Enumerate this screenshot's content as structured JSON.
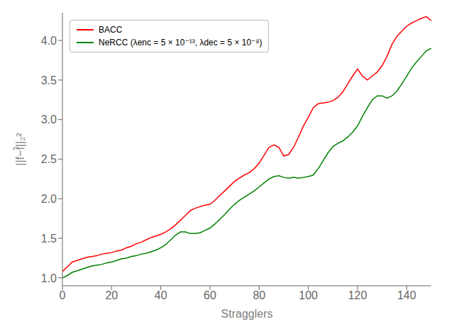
{
  "chart_data": {
    "type": "line",
    "xlabel": "Stragglers",
    "ylabel": "||f−f̂||₂²",
    "xlim": [
      0,
      150
    ],
    "ylim": [
      0.9,
      4.35
    ],
    "xticks": [
      0,
      20,
      40,
      60,
      80,
      100,
      120,
      140
    ],
    "yticks": [
      {
        "value": 1.0,
        "label": "1.0"
      },
      1.5,
      {
        "value": 2.0,
        "label": "2.0"
      },
      2.5,
      {
        "value": 3.0,
        "label": "3.0"
      },
      3.5,
      {
        "value": 4.0,
        "label": "4.0"
      }
    ],
    "grid": false,
    "legend": "upper left",
    "x": [
      0,
      2,
      4,
      6,
      8,
      10,
      12,
      14,
      16,
      18,
      20,
      22,
      24,
      26,
      28,
      30,
      32,
      34,
      36,
      38,
      40,
      42,
      44,
      46,
      48,
      50,
      52,
      54,
      56,
      58,
      60,
      62,
      64,
      66,
      68,
      70,
      72,
      74,
      76,
      78,
      80,
      82,
      84,
      86,
      88,
      90,
      92,
      94,
      96,
      98,
      100,
      102,
      104,
      106,
      108,
      110,
      112,
      114,
      116,
      118,
      120,
      122,
      124,
      126,
      128,
      130,
      132,
      134,
      136,
      138,
      140,
      142,
      144,
      146,
      148,
      150
    ],
    "series": [
      {
        "name": "BACC",
        "color": "#ff0000",
        "values": [
          1.08,
          1.14,
          1.2,
          1.22,
          1.24,
          1.26,
          1.27,
          1.28,
          1.3,
          1.31,
          1.32,
          1.34,
          1.35,
          1.38,
          1.4,
          1.43,
          1.45,
          1.48,
          1.51,
          1.53,
          1.55,
          1.58,
          1.62,
          1.67,
          1.73,
          1.79,
          1.85,
          1.88,
          1.9,
          1.92,
          1.93,
          1.98,
          2.04,
          2.1,
          2.16,
          2.22,
          2.26,
          2.3,
          2.33,
          2.38,
          2.45,
          2.55,
          2.65,
          2.68,
          2.65,
          2.54,
          2.56,
          2.65,
          2.78,
          2.92,
          3.03,
          3.15,
          3.2,
          3.21,
          3.22,
          3.24,
          3.28,
          3.35,
          3.45,
          3.55,
          3.64,
          3.55,
          3.5,
          3.55,
          3.6,
          3.68,
          3.8,
          3.95,
          4.05,
          4.12,
          4.18,
          4.22,
          4.25,
          4.28,
          4.3,
          4.25
        ]
      },
      {
        "name": "NeRCC (λenc = 5 × 10⁻¹³, λdec = 5 × 10⁻⁸)",
        "color": "#008000",
        "values": [
          1.0,
          1.03,
          1.07,
          1.09,
          1.11,
          1.13,
          1.15,
          1.16,
          1.17,
          1.19,
          1.2,
          1.22,
          1.24,
          1.25,
          1.27,
          1.28,
          1.3,
          1.31,
          1.33,
          1.35,
          1.38,
          1.42,
          1.48,
          1.54,
          1.58,
          1.58,
          1.56,
          1.56,
          1.57,
          1.6,
          1.63,
          1.68,
          1.74,
          1.8,
          1.87,
          1.93,
          1.98,
          2.02,
          2.06,
          2.1,
          2.15,
          2.2,
          2.25,
          2.28,
          2.29,
          2.27,
          2.26,
          2.27,
          2.26,
          2.27,
          2.28,
          2.3,
          2.38,
          2.48,
          2.58,
          2.66,
          2.7,
          2.73,
          2.78,
          2.84,
          2.92,
          3.04,
          3.15,
          3.25,
          3.3,
          3.3,
          3.27,
          3.3,
          3.36,
          3.45,
          3.55,
          3.65,
          3.73,
          3.8,
          3.87,
          3.9
        ]
      }
    ]
  }
}
